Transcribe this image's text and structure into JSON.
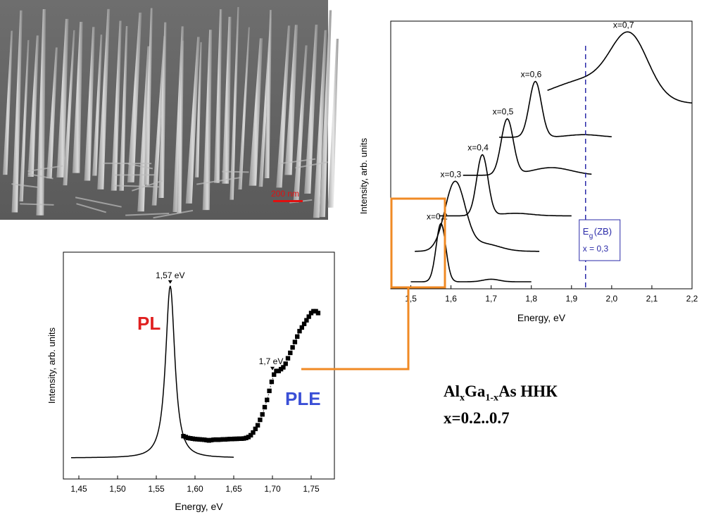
{
  "micrograph": {
    "scale_bar_label": "200 nm"
  },
  "caption": {
    "line1_prefix": "Al",
    "sub_x": "x",
    "mid": "Ga",
    "sub_1x": "1-x",
    "line1_suffix": "As ННК",
    "line2": "x=0.2..0.7"
  },
  "colors": {
    "orange": "#f08a24",
    "pl_label": "#e02020",
    "ple_label": "#3a4fd6",
    "eg_line": "#2a2aa8"
  },
  "chart_data": [
    {
      "type": "line",
      "ylabel": "Intensity, arb. units",
      "xlabel": "Energy, eV",
      "xlim": [
        1.45,
        2.2
      ],
      "x_ticks": [
        "1,5",
        "1,6",
        "1,7",
        "1,8",
        "1,9",
        "2,0",
        "2,1",
        "2,2"
      ],
      "x_tick_values": [
        1.5,
        1.6,
        1.7,
        1.8,
        1.9,
        2.0,
        2.1,
        2.2
      ],
      "series": [
        {
          "name": "x=0,2",
          "peak": 1.575,
          "width": 0.012,
          "x_range": [
            1.5,
            1.8
          ],
          "offset": 0.0,
          "amp": 0.23,
          "shoulder": {
            "at": 1.7,
            "amp": 0.01,
            "width": 0.02
          }
        },
        {
          "name": "x=0,3",
          "peak": 1.61,
          "width": 0.025,
          "x_range": [
            1.51,
            1.82
          ],
          "offset": 0.12,
          "amp": 0.27,
          "shoulder": {
            "at": 1.68,
            "amp": 0.03,
            "width": 0.04
          }
        },
        {
          "name": "x=0,4",
          "peak": 1.678,
          "width": 0.014,
          "x_range": [
            1.57,
            1.9
          ],
          "offset": 0.26,
          "amp": 0.24,
          "shoulder": {
            "at": 1.76,
            "amp": 0.01,
            "width": 0.04
          }
        },
        {
          "name": "x=0,5",
          "peak": 1.74,
          "width": 0.015,
          "x_range": [
            1.63,
            1.95
          ],
          "offset": 0.42,
          "amp": 0.22,
          "shoulder": {
            "at": 1.85,
            "amp": 0.03,
            "width": 0.05
          }
        },
        {
          "name": "x=0,6",
          "peak": 1.81,
          "width": 0.015,
          "x_range": [
            1.72,
            2.0
          ],
          "offset": 0.57,
          "amp": 0.22,
          "shoulder": {
            "at": 1.93,
            "amp": 0.01,
            "width": 0.04
          }
        },
        {
          "name": "x=0,7",
          "peak": 2.045,
          "width": 0.045,
          "x_range": [
            1.84,
            2.2
          ],
          "offset": 0.7,
          "amp": 0.22,
          "shoulder": {
            "at": 1.95,
            "amp": 0.1,
            "width": 0.1
          }
        }
      ],
      "eg_line": {
        "x": 1.935,
        "label_main": "E",
        "label_sub": "g",
        "label_rest": "(ZB)",
        "label_line2": "x = 0,3"
      }
    },
    {
      "type": "line",
      "ylabel": "Intensity, arb. units",
      "xlabel": "Energy, eV",
      "xlim": [
        1.43,
        1.78
      ],
      "x_ticks": [
        "1,45",
        "1,50",
        "1,55",
        "1,60",
        "1,65",
        "1,70",
        "1,75"
      ],
      "x_tick_values": [
        1.45,
        1.5,
        1.55,
        1.6,
        1.65,
        1.7,
        1.75
      ],
      "pl_label": "PL",
      "ple_label": "PLE",
      "pl_peak_label": "1,57 eV",
      "ple_edge_label": "1,7 eV",
      "pl": {
        "peak": 1.568,
        "width": 0.008,
        "x_range": [
          1.44,
          1.65
        ]
      },
      "ple_points": [
        [
          1.585,
          0.12
        ],
        [
          1.588,
          0.115
        ],
        [
          1.591,
          0.11
        ],
        [
          1.594,
          0.108
        ],
        [
          1.597,
          0.106
        ],
        [
          1.6,
          0.104
        ],
        [
          1.603,
          0.103
        ],
        [
          1.606,
          0.102
        ],
        [
          1.609,
          0.101
        ],
        [
          1.612,
          0.1
        ],
        [
          1.615,
          0.098
        ],
        [
          1.618,
          0.096
        ],
        [
          1.621,
          0.098
        ],
        [
          1.624,
          0.1
        ],
        [
          1.627,
          0.101
        ],
        [
          1.63,
          0.1
        ],
        [
          1.633,
          0.101
        ],
        [
          1.636,
          0.102
        ],
        [
          1.639,
          0.102
        ],
        [
          1.642,
          0.103
        ],
        [
          1.645,
          0.104
        ],
        [
          1.648,
          0.104
        ],
        [
          1.651,
          0.105
        ],
        [
          1.654,
          0.105
        ],
        [
          1.657,
          0.106
        ],
        [
          1.66,
          0.106
        ],
        [
          1.663,
          0.107
        ],
        [
          1.666,
          0.11
        ],
        [
          1.669,
          0.115
        ],
        [
          1.672,
          0.125
        ],
        [
          1.675,
          0.14
        ],
        [
          1.678,
          0.16
        ],
        [
          1.681,
          0.18
        ],
        [
          1.684,
          0.21
        ],
        [
          1.687,
          0.24
        ],
        [
          1.69,
          0.28
        ],
        [
          1.693,
          0.32
        ],
        [
          1.696,
          0.37
        ],
        [
          1.699,
          0.42
        ],
        [
          1.702,
          0.46
        ],
        [
          1.705,
          0.48
        ],
        [
          1.708,
          0.48
        ],
        [
          1.711,
          0.49
        ],
        [
          1.714,
          0.5
        ],
        [
          1.717,
          0.52
        ],
        [
          1.72,
          0.55
        ],
        [
          1.723,
          0.58
        ],
        [
          1.726,
          0.61
        ],
        [
          1.729,
          0.64
        ],
        [
          1.732,
          0.67
        ],
        [
          1.735,
          0.7
        ],
        [
          1.738,
          0.72
        ],
        [
          1.741,
          0.74
        ],
        [
          1.744,
          0.76
        ],
        [
          1.747,
          0.78
        ],
        [
          1.75,
          0.8
        ],
        [
          1.753,
          0.81
        ],
        [
          1.756,
          0.81
        ],
        [
          1.759,
          0.8
        ]
      ]
    }
  ]
}
